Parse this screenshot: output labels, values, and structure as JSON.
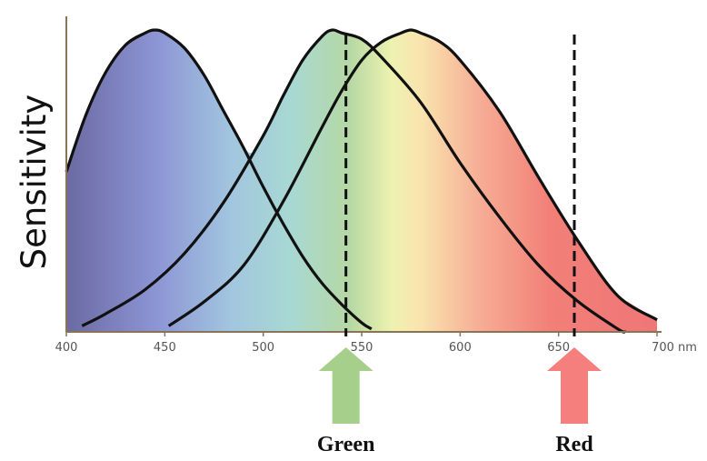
{
  "chart_data": {
    "type": "line",
    "title": "",
    "xlabel": "",
    "ylabel": "Sensitivity",
    "x_unit": "nm",
    "xlim": [
      400,
      700
    ],
    "ylim": [
      0,
      1
    ],
    "x_ticks": [
      400,
      450,
      500,
      550,
      600,
      650,
      700
    ],
    "grid": false,
    "background": "visible spectrum gradient under the curves",
    "series": [
      {
        "peak": 445,
        "x": [
          400,
          410,
          420,
          430,
          440,
          445,
          450,
          460,
          470,
          480,
          490,
          500,
          510,
          520,
          530,
          540,
          550,
          555
        ],
        "y": [
          0.53,
          0.72,
          0.86,
          0.95,
          0.99,
          1.0,
          0.99,
          0.94,
          0.85,
          0.73,
          0.61,
          0.48,
          0.36,
          0.25,
          0.16,
          0.09,
          0.03,
          0.01
        ]
      },
      {
        "peak": 535,
        "x": [
          408,
          420,
          440,
          460,
          480,
          500,
          510,
          520,
          530,
          535,
          540,
          550,
          560,
          580,
          600,
          620,
          640,
          660,
          680,
          684
        ],
        "y": [
          0.02,
          0.06,
          0.14,
          0.26,
          0.43,
          0.65,
          0.78,
          0.9,
          0.98,
          1.0,
          0.99,
          0.97,
          0.91,
          0.76,
          0.56,
          0.38,
          0.22,
          0.1,
          0.01,
          0.0
        ]
      },
      {
        "peak": 575,
        "x": [
          452,
          470,
          490,
          510,
          530,
          540,
          550,
          560,
          570,
          575,
          580,
          590,
          600,
          620,
          640,
          660,
          680,
          700
        ],
        "y": [
          0.02,
          0.1,
          0.22,
          0.43,
          0.68,
          0.8,
          0.9,
          0.96,
          0.99,
          1.0,
          0.99,
          0.96,
          0.9,
          0.73,
          0.51,
          0.3,
          0.12,
          0.04
        ]
      }
    ],
    "markers": [
      {
        "x": 542,
        "label": "Green",
        "color": "#a6cf8c"
      },
      {
        "x": 658,
        "label": "Red",
        "color": "#f47f7d"
      }
    ],
    "colors": {
      "curve": "#111111",
      "axis": "#8b7355"
    }
  }
}
